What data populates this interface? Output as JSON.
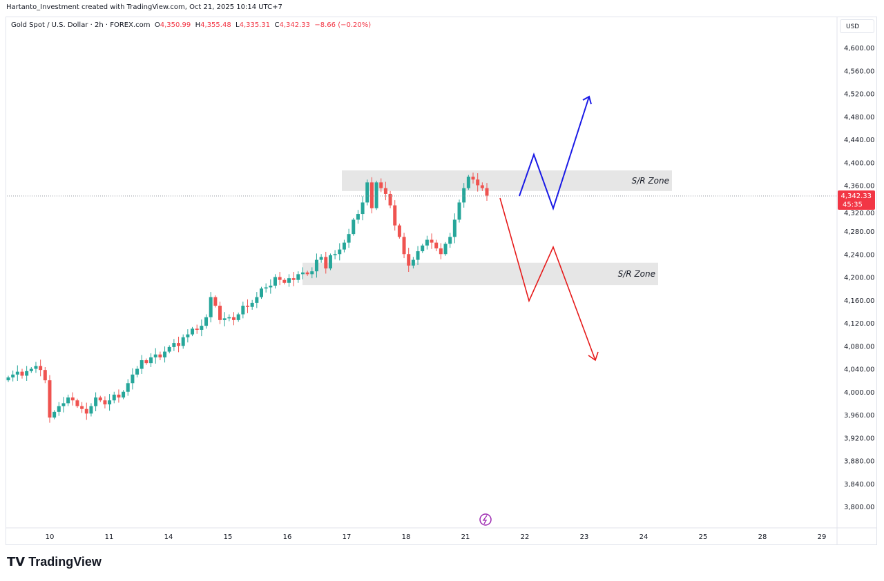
{
  "credit": "Hartanto_Investment created with TradingView.com, Oct 21, 2025 10:14 UTC+7",
  "legend": {
    "symbol": "Gold Spot / U.S. Dollar · 2h · FOREX.com",
    "o_label": "O",
    "o": "4,350.99",
    "h_label": "H",
    "h": "4,355.48",
    "l_label": "L",
    "l": "4,335.31",
    "c_label": "C",
    "c": "4,342.33",
    "change": "−8.66 (−0.20%)"
  },
  "currency": "USD",
  "last_price_label": "4,342.33",
  "countdown": "45:35",
  "logo": "TradingView",
  "colors": {
    "up": "#26a69a",
    "down": "#ef5350",
    "bull_path": "#1a1ae6",
    "bear_path": "#e61a1a",
    "zone": "#e6e6e6"
  },
  "chart_data": {
    "type": "candlestick",
    "ylim": [
      3780,
      4630
    ],
    "y_ticks": [
      "4,600.00",
      "4,560.00",
      "4,520.00",
      "4,480.00",
      "4,440.00",
      "4,400.00",
      "4,360.00",
      "4,320.00",
      "4,280.00",
      "4,240.00",
      "4,200.00",
      "4,160.00",
      "4,120.00",
      "4,080.00",
      "4,040.00",
      "4,000.00",
      "3,960.00",
      "3,920.00",
      "3,880.00",
      "3,840.00",
      "3,800.00"
    ],
    "x_ticks": [
      "10",
      "11",
      "14",
      "15",
      "16",
      "17",
      "18",
      "21",
      "22",
      "23",
      "24",
      "25",
      "28",
      "29"
    ],
    "close": [
      4025,
      4030,
      4035,
      4028,
      4036,
      4040,
      4045,
      4038,
      4020,
      3955,
      3965,
      3975,
      3980,
      3990,
      3985,
      3975,
      3970,
      3962,
      3975,
      3990,
      3985,
      3978,
      3985,
      3995,
      3990,
      4000,
      4015,
      4030,
      4040,
      4055,
      4050,
      4060,
      4065,
      4060,
      4070,
      4078,
      4085,
      4080,
      4095,
      4100,
      4110,
      4108,
      4115,
      4130,
      4165,
      4150,
      4125,
      4128,
      4130,
      4125,
      4135,
      4150,
      4148,
      4155,
      4165,
      4180,
      4182,
      4185,
      4200,
      4195,
      4190,
      4198,
      4195,
      4205,
      4208,
      4205,
      4210,
      4230,
      4235,
      4215,
      4238,
      4240,
      4248,
      4260,
      4275,
      4300,
      4310,
      4330,
      4365,
      4320,
      4365,
      4355,
      4345,
      4325,
      4290,
      4270,
      4240,
      4220,
      4230,
      4245,
      4255,
      4265,
      4260,
      4250,
      4240,
      4258,
      4270,
      4300,
      4330,
      4355,
      4375,
      4370,
      4360,
      4355,
      4342
    ],
    "annotations": [
      {
        "type": "zone",
        "label": "S/R Zone",
        "range": [
          4350,
          4386
        ]
      },
      {
        "type": "zone",
        "label": "S/R Zone",
        "range": [
          4186,
          4225
        ]
      }
    ]
  }
}
